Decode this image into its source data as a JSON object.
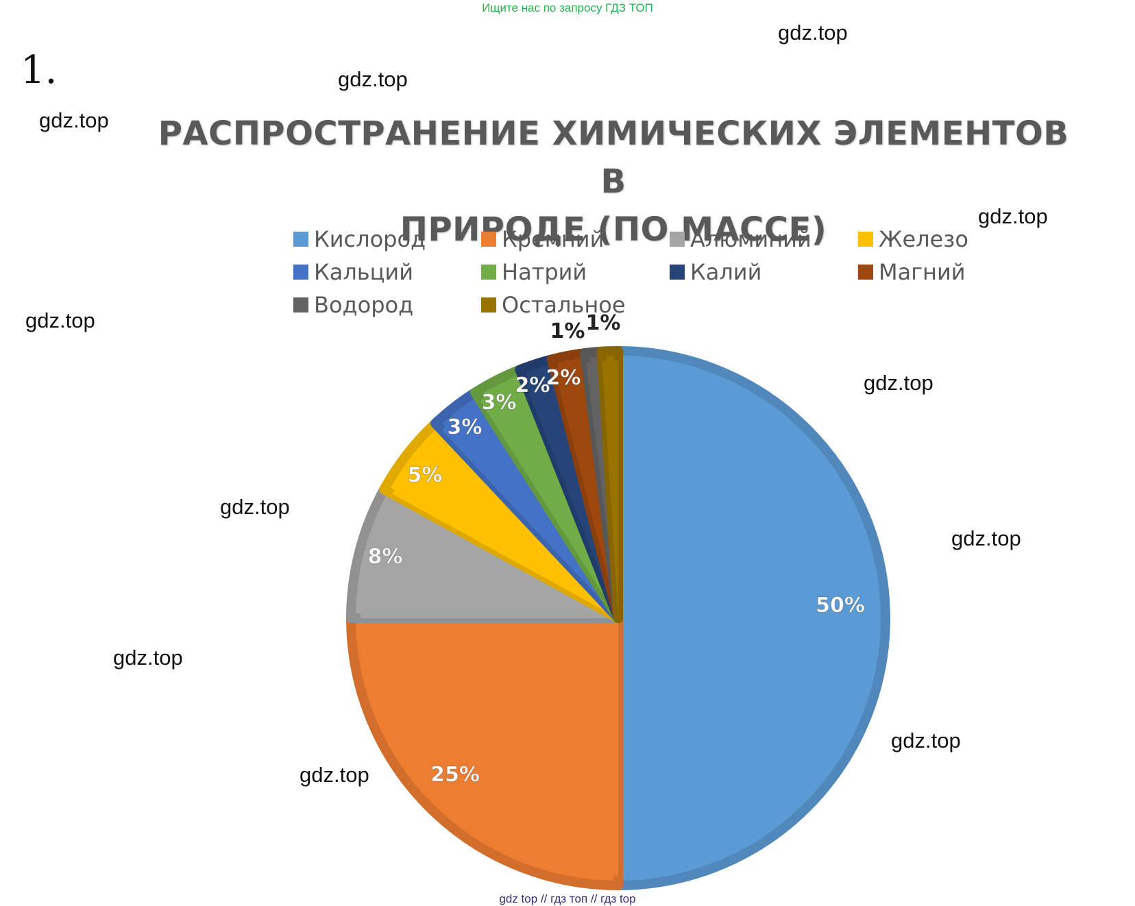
{
  "banner": "Ищите нас по запросу ГДЗ ТОП",
  "task_number": "1.",
  "watermark": "gdz.top",
  "footer": "gdz top  //  гдз топ  //  гдз top",
  "chart_data": {
    "type": "pie",
    "title": "РАСПРОСТРАНЕНИЕ ХИМИЧЕСКИХ ЭЛЕМЕНТОВ В ПРИРОДЕ (ПО МАССЕ)",
    "title_lines": [
      "РАСПРОСТРАНЕНИЕ ХИМИЧЕСКИХ ЭЛЕМЕНТОВ В",
      "ПРИРОДЕ (ПО МАССЕ)"
    ],
    "legend_position": "top",
    "categories": [
      "Кислород",
      "Кремний",
      "Алюминий",
      "Железо",
      "Кальций",
      "Натрий",
      "Калий",
      "Магний",
      "Водород",
      "Остальное"
    ],
    "values": [
      50,
      25,
      8,
      5,
      3,
      3,
      2,
      2,
      1,
      1
    ],
    "labels": [
      "50%",
      "25%",
      "8%",
      "5%",
      "3%",
      "3%",
      "2%",
      "2%",
      "1%",
      "1%"
    ],
    "colors": [
      "#5b9bd5",
      "#ed7d31",
      "#a5a5a5",
      "#ffc000",
      "#4472c4",
      "#70ad47",
      "#264478",
      "#9e480e",
      "#636363",
      "#997300"
    ]
  }
}
